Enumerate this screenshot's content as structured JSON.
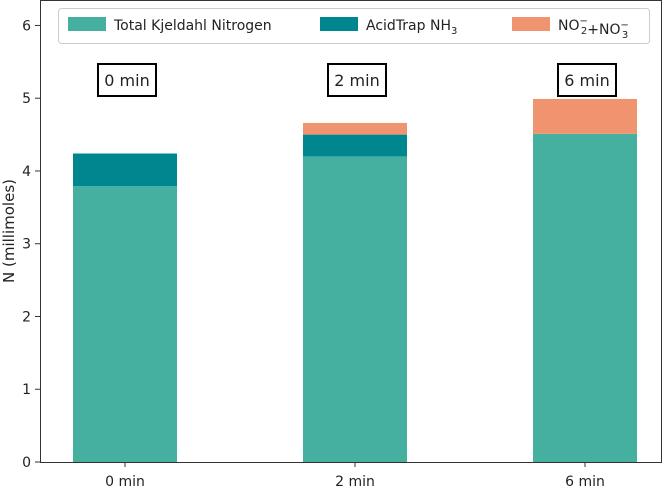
{
  "chart_data": {
    "type": "bar",
    "stacked": true,
    "categories": [
      "0 min",
      "2 min",
      "6 min"
    ],
    "series": [
      {
        "name": "Total Kjeldahl Nitrogen",
        "label_main": "Total Kjeldahl Nitrogen",
        "color": "#45b09f",
        "values": [
          3.79,
          4.2,
          4.51
        ]
      },
      {
        "name": "AcidTrap NH3",
        "label_main": "AcidTrap NH",
        "label_sub": "3",
        "color": "#00868f",
        "values": [
          0.45,
          0.3,
          0.0
        ]
      },
      {
        "name": "NO2- + NO3-",
        "label_parts": [
          {
            "t": "NO",
            "sub": "2",
            "sup": "−"
          },
          {
            "t": "+NO",
            "sub": "3",
            "sup": "−"
          }
        ],
        "color": "#f0946f",
        "values": [
          0.0,
          0.16,
          0.48
        ]
      }
    ],
    "bar_annotations": [
      "0 min",
      "2 min",
      "6 min"
    ],
    "xlabel": "",
    "ylabel": "N (millimoles)",
    "ylim": [
      0,
      6.35
    ],
    "yticks": [
      0,
      1,
      2,
      3,
      4,
      5,
      6
    ],
    "grid": false,
    "legend": "top"
  }
}
